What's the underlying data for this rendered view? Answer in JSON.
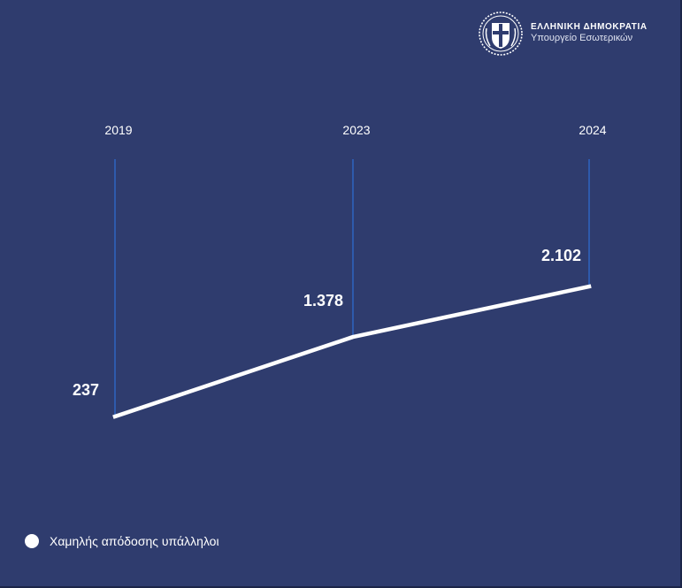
{
  "brand": {
    "line1": "ΕΛΛΗΝΙΚΗ ΔΗΜΟΚΡΑΤΙΑ",
    "line2": "Υπουργείο Εσωτερικών",
    "seal_icon": "greek-coat-of-arms-icon"
  },
  "colors": {
    "background": "#2f3c6e",
    "series_line": "#ffffff",
    "guide_line": "#2f6fd6",
    "text": "#ffffff"
  },
  "chart_data": {
    "type": "line",
    "x": [
      "2019",
      "2023",
      "2024"
    ],
    "series": [
      {
        "name": "Χαμηλής απόδοσης υπάλληλοι",
        "values": [
          237,
          1378,
          2102
        ],
        "value_labels": [
          "237",
          "1.378",
          "2.102"
        ]
      }
    ],
    "legend_position": "bottom-left",
    "grid": false
  }
}
